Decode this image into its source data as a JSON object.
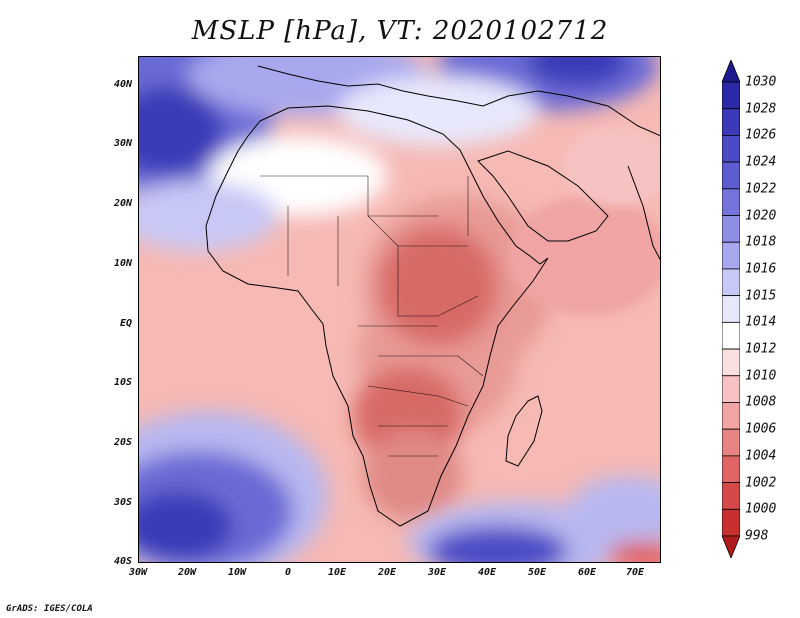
{
  "title": "MSLP [hPa], VT: 2020102712",
  "credit": "GrADS: IGES/COLA",
  "lat_labels": [
    "40N",
    "30N",
    "20N",
    "10N",
    "EQ",
    "10S",
    "20S",
    "30S",
    "40S"
  ],
  "lon_labels": [
    "30W",
    "20W",
    "10W",
    "0",
    "10E",
    "20E",
    "30E",
    "40E",
    "50E",
    "60E",
    "70E"
  ],
  "colorbar": {
    "levels": [
      "1030",
      "1028",
      "1026",
      "1024",
      "1022",
      "1020",
      "1018",
      "1016",
      "1015",
      "1014",
      "1012",
      "1010",
      "1008",
      "1006",
      "1004",
      "1002",
      "1000",
      "998"
    ],
    "colors": [
      "#1c1a8c",
      "#2a2aa8",
      "#3a3ab8",
      "#4b4bc6",
      "#5d5dd2",
      "#7474dc",
      "#8e8ee6",
      "#a8a8ee",
      "#c8c8f6",
      "#e8e8fc",
      "#ffffff",
      "#fbe0e0",
      "#f6c2c2",
      "#f0a4a4",
      "#e98484",
      "#e06464",
      "#d54848",
      "#c83030",
      "#b01c1c"
    ]
  },
  "region_colors": {
    "ocean_base": "#f6b9b4",
    "high_dark": "#3a3ab8",
    "high_mid": "#6a6ad6",
    "high_light": "#b8b8f0",
    "neutral": "#ffffff",
    "low_light": "#f6c9c6",
    "low_mid": "#e89a96",
    "low_dark": "#d86a66",
    "coast": "#000000"
  }
}
